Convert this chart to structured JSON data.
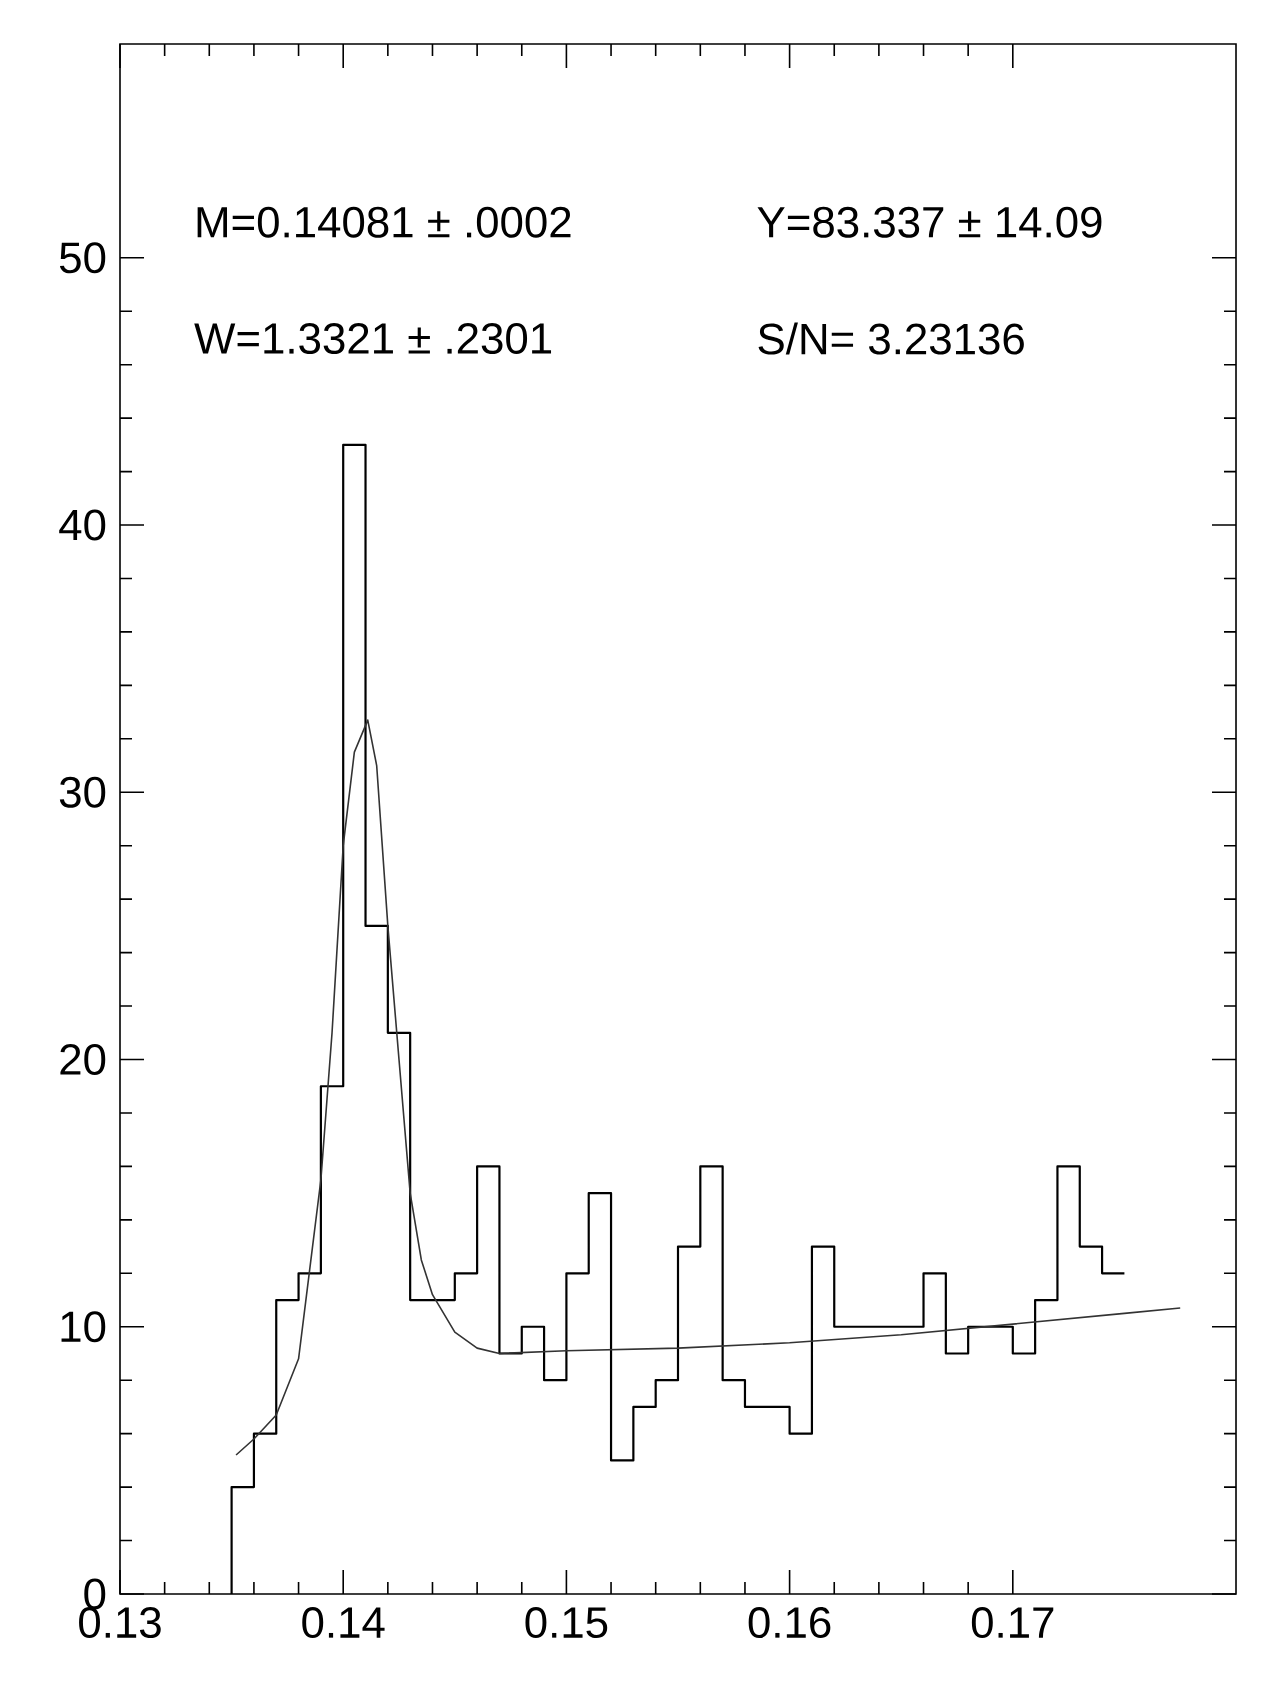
{
  "chart_data": {
    "type": "histogram",
    "xlim": [
      0.13,
      0.18
    ],
    "xticks": [
      0.13,
      0.14,
      0.15,
      0.16,
      0.17
    ],
    "ylim": [
      0,
      58
    ],
    "yticks": [
      0,
      10,
      20,
      30,
      40,
      50
    ],
    "color": "#000000",
    "bins": [
      0.135,
      0.136,
      0.137,
      0.138,
      0.139,
      0.14,
      0.141,
      0.142,
      0.143,
      0.144,
      0.145,
      0.146,
      0.147,
      0.148,
      0.149,
      0.15,
      0.151,
      0.152,
      0.153,
      0.154,
      0.155,
      0.156,
      0.157,
      0.158,
      0.159,
      0.16,
      0.161,
      0.162,
      0.163,
      0.164,
      0.165,
      0.166,
      0.167,
      0.168,
      0.169,
      0.17,
      0.171,
      0.172,
      0.173,
      0.174,
      0.175
    ],
    "values": [
      4,
      6,
      11,
      12,
      19,
      43,
      25,
      21,
      11,
      11,
      12,
      16,
      9,
      10,
      8,
      12,
      15,
      5,
      7,
      8,
      13,
      16,
      8,
      7,
      7,
      6,
      13,
      10,
      10,
      10,
      10,
      12,
      9,
      10,
      10,
      9,
      11,
      16,
      13,
      12
    ],
    "series": [
      {
        "type": "line",
        "color": "#333333",
        "x": [
          0.1352,
          0.136,
          0.137,
          0.138,
          0.139,
          0.1395,
          0.14,
          0.1405,
          0.1411,
          0.1415,
          0.142,
          0.1425,
          0.143,
          0.1435,
          0.144,
          0.145,
          0.146,
          0.147,
          0.15,
          0.155,
          0.16,
          0.165,
          0.17,
          0.175,
          0.1775
        ],
        "values": [
          5.2,
          5.8,
          6.7,
          8.8,
          15.5,
          21,
          28,
          31.5,
          32.7,
          31,
          25,
          20,
          15,
          12.5,
          11.2,
          9.8,
          9.2,
          9.0,
          9.1,
          9.2,
          9.4,
          9.7,
          10.1,
          10.5,
          10.7
        ]
      }
    ],
    "annotations": [
      "M=0.14081 ± .0002",
      "W=1.3321 ± .2301",
      "Y=83.337 ± 14.09",
      "S/N= 3.23136"
    ]
  }
}
